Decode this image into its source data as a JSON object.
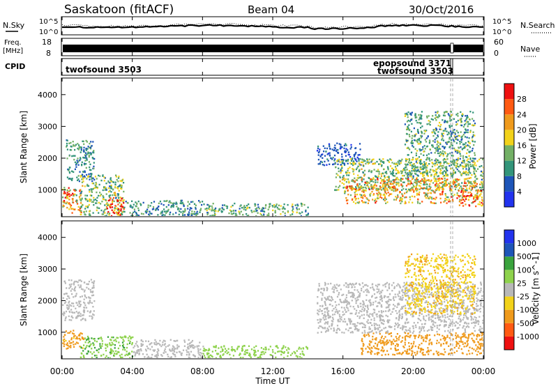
{
  "header": {
    "station": "Saskatoon (fitACF)",
    "beam": "Beam 04",
    "date": "30/Oct/2016"
  },
  "noise_panel": {
    "left_label": "N.Sky",
    "left_ticks": [
      "10^5",
      "10^0"
    ],
    "right_label": "N.Search",
    "right_ticks": [
      "10^5",
      "10^0"
    ]
  },
  "freq_panel": {
    "left_label": "Freq.",
    "left_unit": "[MHz]",
    "left_ticks": [
      "18",
      "8"
    ],
    "right_label": "Nave",
    "right_ticks": [
      "60",
      "0"
    ]
  },
  "cpid_panel": {
    "label": "CPID",
    "entries": [
      "twofsound 3503",
      "epopsound 3371",
      "twofsound 3503"
    ]
  },
  "time_axis": {
    "title": "Time UT",
    "ticks": [
      "00:00",
      "04:00",
      "08:00",
      "12:00",
      "16:00",
      "20:00",
      "00:00"
    ]
  },
  "colors": {
    "power_scale": [
      "#2233ee",
      "#1e55b8",
      "#33957a",
      "#73b066",
      "#f2d21a",
      "#ef9a1c",
      "#ff5a12",
      "#ee1010"
    ],
    "velocity_scale": [
      "#ee1010",
      "#ff5a12",
      "#ef9a1c",
      "#f2d21a",
      "#b8b8b8",
      "#bdbdbd",
      "#8ed24c",
      "#3aa33d",
      "#1e55b8",
      "#2233ee"
    ],
    "ground_scatter": "#b8b8b8"
  },
  "chart_data": [
    {
      "type": "heatmap",
      "title": "",
      "xlabel": "Time UT",
      "ylabel": "Slant Range [km]",
      "colorbar_label": "Power [dB]",
      "colorbar_ticks": [
        "4",
        "8",
        "12",
        "16",
        "20",
        "24",
        "28"
      ],
      "xlim_hours": [
        0,
        24
      ],
      "ylim": [
        180,
        4500
      ],
      "y_ticks": [
        1000,
        2000,
        3000,
        4000
      ],
      "regions": [
        {
          "t0": 0.0,
          "t1": 1.1,
          "r0": 300,
          "r1": 1100,
          "value": 20
        },
        {
          "t0": 0.0,
          "t1": 0.6,
          "r0": 600,
          "r1": 1000,
          "value": 28
        },
        {
          "t0": 0.2,
          "t1": 1.8,
          "r0": 1300,
          "r1": 2600,
          "value": 10
        },
        {
          "t0": 1.0,
          "t1": 3.5,
          "r0": 200,
          "r1": 1500,
          "value": 14
        },
        {
          "t0": 2.5,
          "t1": 3.5,
          "r0": 200,
          "r1": 800,
          "value": 28
        },
        {
          "t0": 3.5,
          "t1": 8.0,
          "r0": 200,
          "r1": 700,
          "value": 10
        },
        {
          "t0": 8.0,
          "t1": 14.0,
          "r0": 200,
          "r1": 600,
          "value": 12
        },
        {
          "t0": 14.5,
          "t1": 17.0,
          "r0": 1800,
          "r1": 2500,
          "value": 6
        },
        {
          "t0": 15.5,
          "t1": 24.0,
          "r0": 1000,
          "r1": 2000,
          "value": 14
        },
        {
          "t0": 16.0,
          "t1": 24.0,
          "r0": 600,
          "r1": 1400,
          "value": 20
        },
        {
          "t0": 22.5,
          "t1": 24.0,
          "r0": 500,
          "r1": 1000,
          "value": 28
        },
        {
          "t0": 19.5,
          "t1": 23.5,
          "r0": 1500,
          "r1": 3500,
          "value": 12
        }
      ]
    },
    {
      "type": "heatmap",
      "title": "",
      "xlabel": "Time UT",
      "ylabel": "Slant Range [km]",
      "colorbar_label": "Velocity [m s^-1]",
      "colorbar_ticks": [
        "1000",
        "500",
        "100",
        "25",
        "-25",
        "-100",
        "-500",
        "-1000"
      ],
      "xlim_hours": [
        0,
        24
      ],
      "ylim": [
        180,
        4500
      ],
      "y_ticks": [
        1000,
        2000,
        3000,
        4000
      ],
      "regions": [
        {
          "t0": 0.0,
          "t1": 1.8,
          "r0": 1400,
          "r1": 2700,
          "value": 0
        },
        {
          "t0": 0.0,
          "t1": 1.2,
          "r0": 500,
          "r1": 1100,
          "value": -150
        },
        {
          "t0": 1.0,
          "t1": 4.0,
          "r0": 200,
          "r1": 900,
          "value": 80
        },
        {
          "t0": 4.0,
          "t1": 8.0,
          "r0": 200,
          "r1": 800,
          "value": 0
        },
        {
          "t0": 8.0,
          "t1": 14.0,
          "r0": 200,
          "r1": 600,
          "value": 60
        },
        {
          "t0": 14.5,
          "t1": 24.0,
          "r0": 1000,
          "r1": 2600,
          "value": 0
        },
        {
          "t0": 17.0,
          "t1": 24.0,
          "r0": 300,
          "r1": 1000,
          "value": -200
        },
        {
          "t0": 19.5,
          "t1": 23.5,
          "r0": 1600,
          "r1": 3500,
          "value": -80
        }
      ]
    }
  ]
}
